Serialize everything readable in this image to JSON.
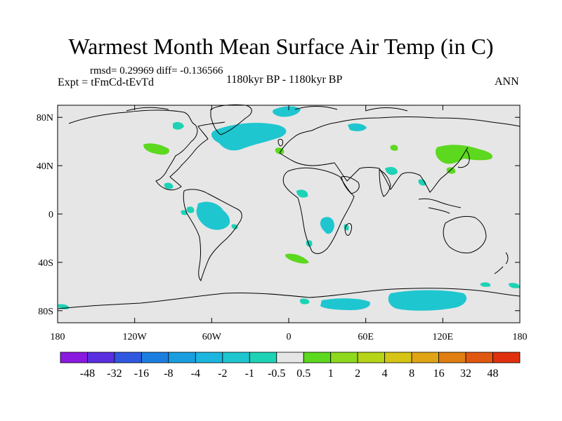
{
  "title": "Warmest Month Mean Surface Air Temp (in C)",
  "stats": "rmsd= 0.29969  diff= -0.136566",
  "experiment": "Expt = tFmCd-tEvTd",
  "period": "1180kyr BP - 1180kyr BP",
  "season": "ANN",
  "map": {
    "projection": "cylindrical equidistant",
    "lon_range": [
      -180,
      180
    ],
    "lat_range": [
      -90,
      90
    ],
    "background_color": "#e6e6e6",
    "coastline_color": "#000000",
    "y_ticks": [
      {
        "lat": 80,
        "label": "80N"
      },
      {
        "lat": 40,
        "label": "40N"
      },
      {
        "lat": 0,
        "label": "0"
      },
      {
        "lat": -40,
        "label": "40S"
      },
      {
        "lat": -80,
        "label": "80S"
      }
    ],
    "x_ticks": [
      {
        "lon": -180,
        "label": "180"
      },
      {
        "lon": -120,
        "label": "120W"
      },
      {
        "lon": -60,
        "label": "60W"
      },
      {
        "lon": 0,
        "label": "0"
      },
      {
        "lon": 60,
        "label": "60E"
      },
      {
        "lon": 120,
        "label": "120E"
      },
      {
        "lon": 180,
        "label": "180"
      }
    ]
  },
  "colorbar": {
    "colors": [
      "#8a1ae0",
      "#5a2fe0",
      "#2f57e0",
      "#1c7ee0",
      "#1a9ee0",
      "#1ab6e0",
      "#1ec6d0",
      "#1ed2b6",
      "#e6e6e6",
      "#5cd81e",
      "#8ed81e",
      "#b6d418",
      "#d6c416",
      "#e0a414",
      "#e07e12",
      "#e05810",
      "#e0300e"
    ],
    "labels": [
      "-48",
      "-32",
      "-16",
      "-8",
      "-4",
      "-2",
      "-1",
      "-0.5",
      "0.5",
      "1",
      "2",
      "4",
      "8",
      "16",
      "32",
      "48"
    ]
  },
  "anomaly_regions": [
    {
      "name": "north-atlantic-cool",
      "level": -0.5,
      "color": "#1ec6d0"
    },
    {
      "name": "greenland-sea-cool",
      "level": -0.5,
      "color": "#1ec6d0"
    },
    {
      "name": "siberia-cool",
      "level": -0.5,
      "color": "#1ec6d0"
    },
    {
      "name": "amazon-cool",
      "level": -0.5,
      "color": "#1ec6d0"
    },
    {
      "name": "east-africa-cool",
      "level": -0.5,
      "color": "#1ec6d0"
    },
    {
      "name": "antarctica-east-cool",
      "level": -0.5,
      "color": "#1ec6d0"
    },
    {
      "name": "antarctica-weddell-cool",
      "level": -0.5,
      "color": "#1ec6d0"
    },
    {
      "name": "north-pacific-warm",
      "level": 0.5,
      "color": "#5cd81e"
    },
    {
      "name": "east-asia-warm",
      "level": 0.5,
      "color": "#5cd81e"
    },
    {
      "name": "southern-ocean-warm",
      "level": 0.5,
      "color": "#5cd81e"
    },
    {
      "name": "atlantic-midlat-warm",
      "level": 0.5,
      "color": "#5cd81e"
    }
  ]
}
